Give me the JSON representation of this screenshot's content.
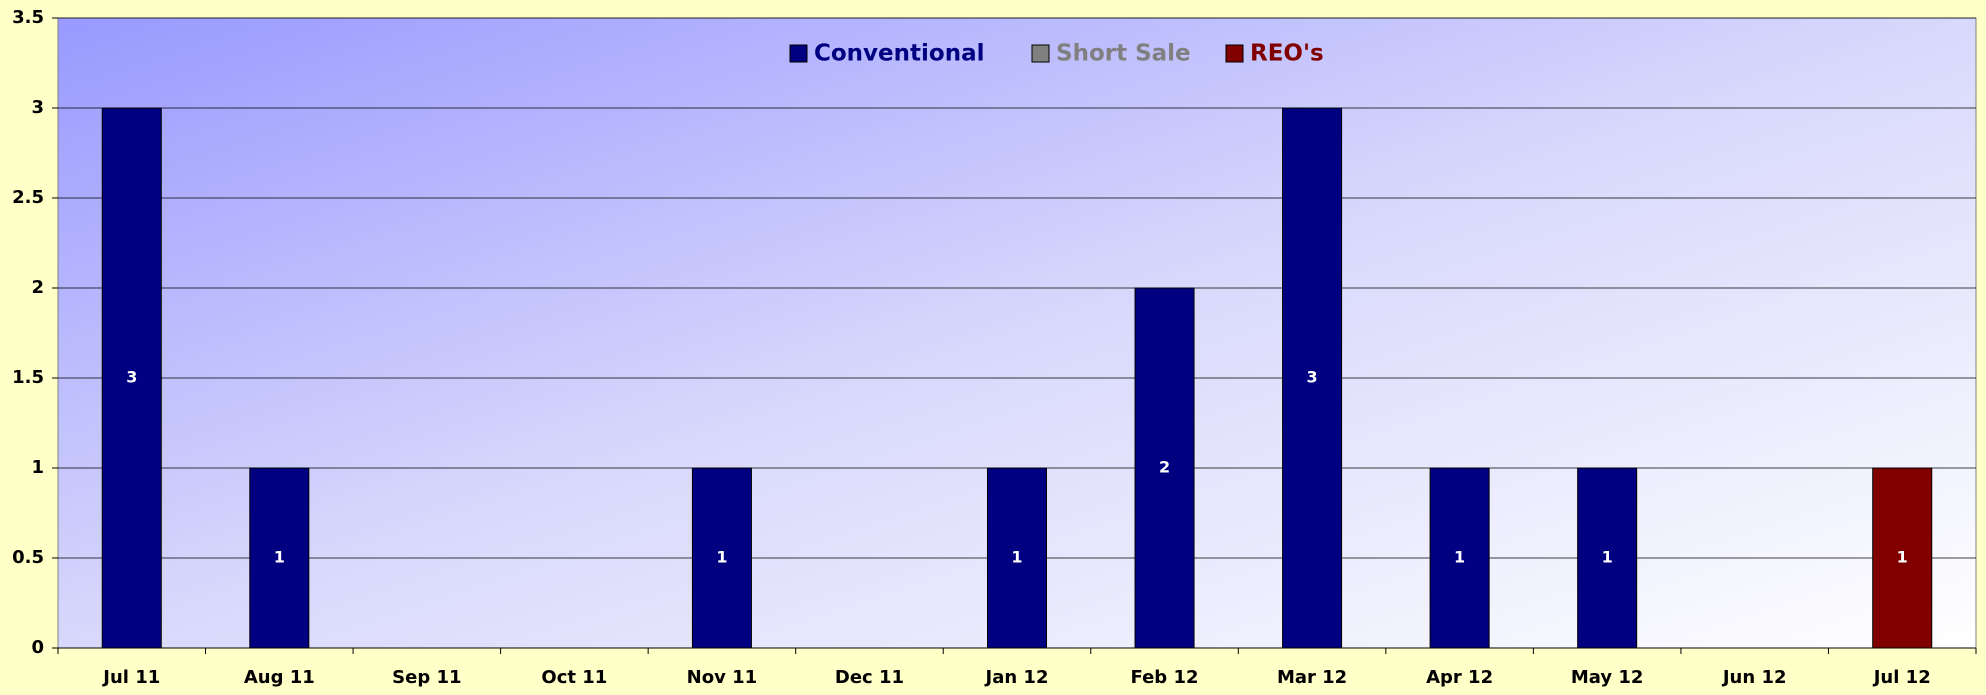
{
  "chart_data": {
    "type": "stacked_bar",
    "categories": [
      "Jul 11",
      "Aug 11",
      "Sep 11",
      "Oct 11",
      "Nov 11",
      "Dec 11",
      "Jan 12",
      "Feb 12",
      "Mar 12",
      "Apr 12",
      "May 12",
      "Jun 12",
      "Jul 12"
    ],
    "series": [
      {
        "name": "Conventional",
        "color": "#000080",
        "values": [
          3,
          1,
          0,
          0,
          1,
          0,
          1,
          2,
          3,
          1,
          1,
          0,
          0
        ]
      },
      {
        "name": "Short Sale",
        "color": "#808080",
        "values": [
          0,
          0,
          0,
          0,
          0,
          0,
          0,
          0,
          0,
          0,
          0,
          0,
          0
        ]
      },
      {
        "name": "REO's",
        "color": "#800000",
        "values": [
          0,
          0,
          0,
          0,
          0,
          0,
          0,
          0,
          0,
          0,
          0,
          0,
          1
        ]
      }
    ],
    "ylim": [
      0,
      3.5
    ],
    "yticks": [
      0,
      0.5,
      1,
      1.5,
      2,
      2.5,
      3,
      3.5
    ],
    "grid": true,
    "legend": "top"
  }
}
